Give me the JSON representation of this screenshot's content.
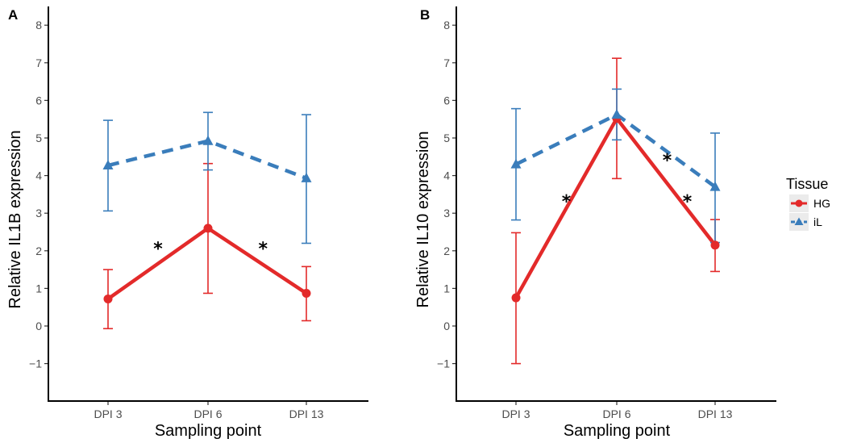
{
  "chart_data": [
    {
      "type": "line",
      "panel_label": "A",
      "xlabel": "Sampling point",
      "ylabel": "Relative IL1B expression",
      "categories": [
        "DPI 3",
        "DPI 6",
        "DPI 13"
      ],
      "ylim": [
        -2,
        8
      ],
      "yticks": [
        "−1",
        "0",
        "1",
        "2",
        "3",
        "4",
        "5",
        "6",
        "7",
        "8"
      ],
      "series": [
        {
          "name": "HG",
          "values": [
            0.72,
            2.6,
            0.87
          ],
          "err_low": [
            -0.07,
            0.87,
            0.14
          ],
          "err_high": [
            1.5,
            4.32,
            1.58
          ]
        },
        {
          "name": "iL",
          "values": [
            4.27,
            4.92,
            3.93
          ],
          "err_low": [
            3.06,
            4.15,
            2.2
          ],
          "err_high": [
            5.47,
            5.68,
            5.62
          ]
        }
      ],
      "annotations": [
        {
          "text": "*",
          "x": 1.5,
          "y": 2.2
        },
        {
          "text": "*",
          "x": 2.55,
          "y": 2.2
        }
      ]
    },
    {
      "type": "line",
      "panel_label": "B",
      "xlabel": "Sampling point",
      "ylabel": "Relative IL10 expression",
      "categories": [
        "DPI 3",
        "DPI 6",
        "DPI 13"
      ],
      "ylim": [
        -2,
        8
      ],
      "yticks": [
        "−1",
        "0",
        "1",
        "2",
        "3",
        "4",
        "5",
        "6",
        "7",
        "8"
      ],
      "series": [
        {
          "name": "HG",
          "values": [
            0.75,
            5.52,
            2.15
          ],
          "err_low": [
            -1.0,
            3.92,
            1.45
          ],
          "err_high": [
            2.48,
            7.12,
            2.83
          ]
        },
        {
          "name": "iL",
          "values": [
            4.3,
            5.62,
            3.7
          ],
          "err_low": [
            2.82,
            4.95,
            2.22
          ],
          "err_high": [
            5.78,
            6.3,
            5.13
          ]
        }
      ],
      "annotations": [
        {
          "text": "*",
          "x": 1.5,
          "y": 3.45
        },
        {
          "text": "*",
          "x": 2.5,
          "y": 4.55
        },
        {
          "text": "*",
          "x": 2.7,
          "y": 3.45
        }
      ]
    }
  ],
  "legend": {
    "title": "Tissue",
    "items": [
      {
        "label": "HG",
        "color": "#e32a2a"
      },
      {
        "label": "iL",
        "color": "#3a7dbb"
      }
    ]
  },
  "colors": {
    "HG": "#e32a2a",
    "iL": "#3a7dbb"
  }
}
